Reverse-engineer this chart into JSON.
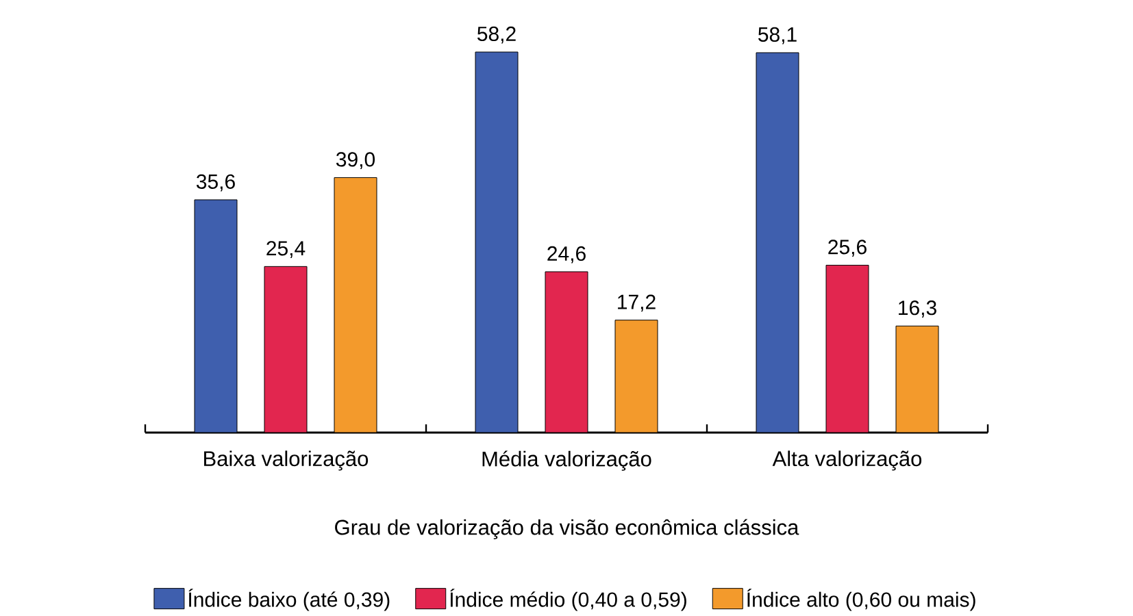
{
  "chart_data": {
    "type": "bar",
    "xlabel": "Grau de valorização da visão econômica clássica",
    "categories": [
      "Baixa valorização",
      "Média valorização",
      "Alta valorização"
    ],
    "series": [
      {
        "name": "Índice baixo (até 0,39)",
        "color": "#3f5fae",
        "values": [
          35.6,
          58.2,
          58.1
        ],
        "value_labels": [
          "35,6",
          "58,2",
          "58,1"
        ]
      },
      {
        "name": "Índice médio (0,40 a 0,59)",
        "color": "#e2264f",
        "values": [
          25.4,
          24.6,
          25.6
        ],
        "value_labels": [
          "25,4",
          "24,6",
          "25,6"
        ]
      },
      {
        "name": "Índice alto (0,60 ou mais)",
        "color": "#f39a2c",
        "values": [
          39.0,
          17.2,
          16.3
        ],
        "value_labels": [
          "39,0",
          "17,2",
          "16,3"
        ]
      }
    ],
    "tick_labels": "x",
    "legend": "bottom"
  }
}
